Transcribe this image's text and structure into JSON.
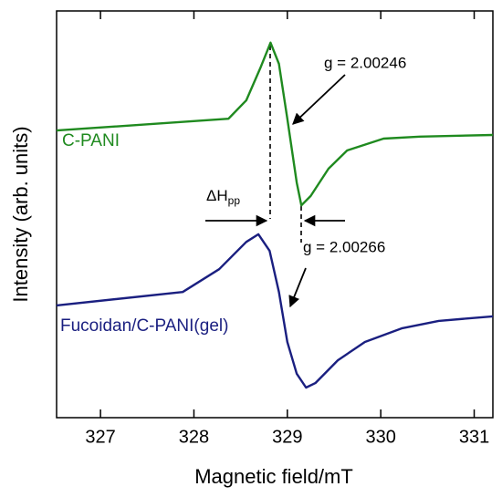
{
  "chart_data": {
    "type": "line",
    "x_label": "Magnetic field/mT",
    "y_label": "Intensity (arb. units)",
    "xlim": [
      326.53,
      331.2
    ],
    "xticks": [
      327,
      328,
      329,
      330,
      331
    ],
    "ylim": [
      0,
      100
    ],
    "series": [
      {
        "name": "C-PANI",
        "color": "#1f8a1f",
        "x": [
          326.53,
          328.37,
          328.56,
          328.71,
          328.82,
          328.91,
          329.0,
          329.1,
          329.15,
          329.25,
          329.44,
          329.64,
          330.03,
          330.42,
          331.2
        ],
        "values": [
          70.6,
          73.5,
          78.0,
          85.9,
          92.2,
          87.0,
          73.5,
          57.8,
          52.2,
          54.5,
          61.2,
          65.7,
          68.6,
          69.1,
          69.5
        ]
      },
      {
        "name": "Fucoidan/C-PANI(gel)",
        "color": "#1a1f80",
        "x": [
          326.53,
          327.88,
          328.27,
          328.56,
          328.69,
          328.81,
          328.91,
          329.0,
          329.1,
          329.2,
          329.3,
          329.54,
          329.83,
          330.23,
          330.62,
          331.2
        ],
        "values": [
          27.6,
          30.9,
          36.5,
          43.2,
          45.1,
          41.0,
          30.9,
          18.6,
          10.8,
          7.4,
          8.5,
          14.1,
          18.6,
          22.0,
          23.8,
          24.9
        ]
      }
    ],
    "annotations": [
      "g = 2.00246",
      "g = 2.00266"
    ],
    "linewidth_label": {
      "symbol": "ΔH",
      "subscript": "pp"
    }
  }
}
